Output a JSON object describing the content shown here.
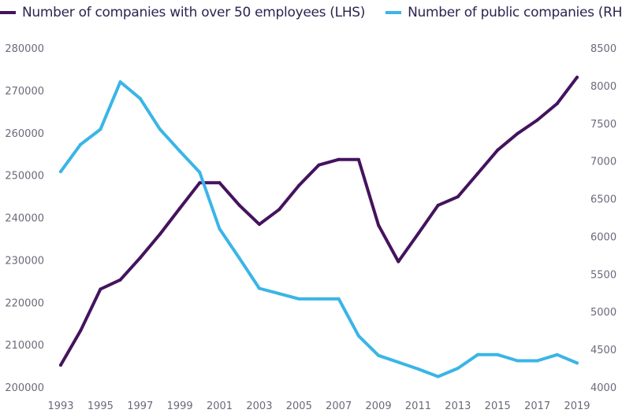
{
  "chart_data": {
    "type": "line",
    "title": "",
    "xlabel": "",
    "ylabel_left": "",
    "ylabel_right": "",
    "x": [
      1993,
      1994,
      1995,
      1996,
      1997,
      1998,
      1999,
      2000,
      2001,
      2002,
      2003,
      2004,
      2005,
      2006,
      2007,
      2008,
      2009,
      2010,
      2011,
      2012,
      2013,
      2014,
      2015,
      2016,
      2017,
      2018,
      2019
    ],
    "x_tick_labels": [
      "1993",
      "1995",
      "1997",
      "1999",
      "2001",
      "2003",
      "2005",
      "2007",
      "2009",
      "2011",
      "2013",
      "2015",
      "2017",
      "2019"
    ],
    "y_left_range": [
      200000,
      280000
    ],
    "y_left_tick_labels": [
      "200000",
      "210000",
      "220000",
      "230000",
      "240000",
      "250000",
      "260000",
      "270000",
      "280000"
    ],
    "y_right_range": [
      4000,
      8500
    ],
    "y_right_tick_labels": [
      "4000",
      "4500",
      "5000",
      "5500",
      "6000",
      "6500",
      "7000",
      "7500",
      "8000",
      "8500"
    ],
    "grid": false,
    "legend_position": "top-left",
    "series": [
      {
        "name": "Number of companies with over 50 employees (LHS)",
        "axis": "left",
        "color": "#44135e",
        "values": [
          205200,
          213300,
          223100,
          225300,
          230500,
          236100,
          242200,
          248200,
          248200,
          242900,
          238400,
          241900,
          247600,
          252400,
          253700,
          253700,
          238200,
          229600,
          236200,
          242900,
          244900,
          250400,
          255900,
          259800,
          263000,
          266900,
          273100
        ]
      },
      {
        "name": "Number of public companies (RHS)",
        "axis": "right",
        "color": "#3ab5e6",
        "values": [
          6860,
          7220,
          7420,
          8050,
          7830,
          7420,
          7130,
          6850,
          6100,
          5710,
          5310,
          5240,
          5170,
          5170,
          5170,
          4680,
          4420,
          4330,
          4240,
          4140,
          4250,
          4430,
          4430,
          4350,
          4350,
          4430,
          4320
        ]
      }
    ]
  }
}
